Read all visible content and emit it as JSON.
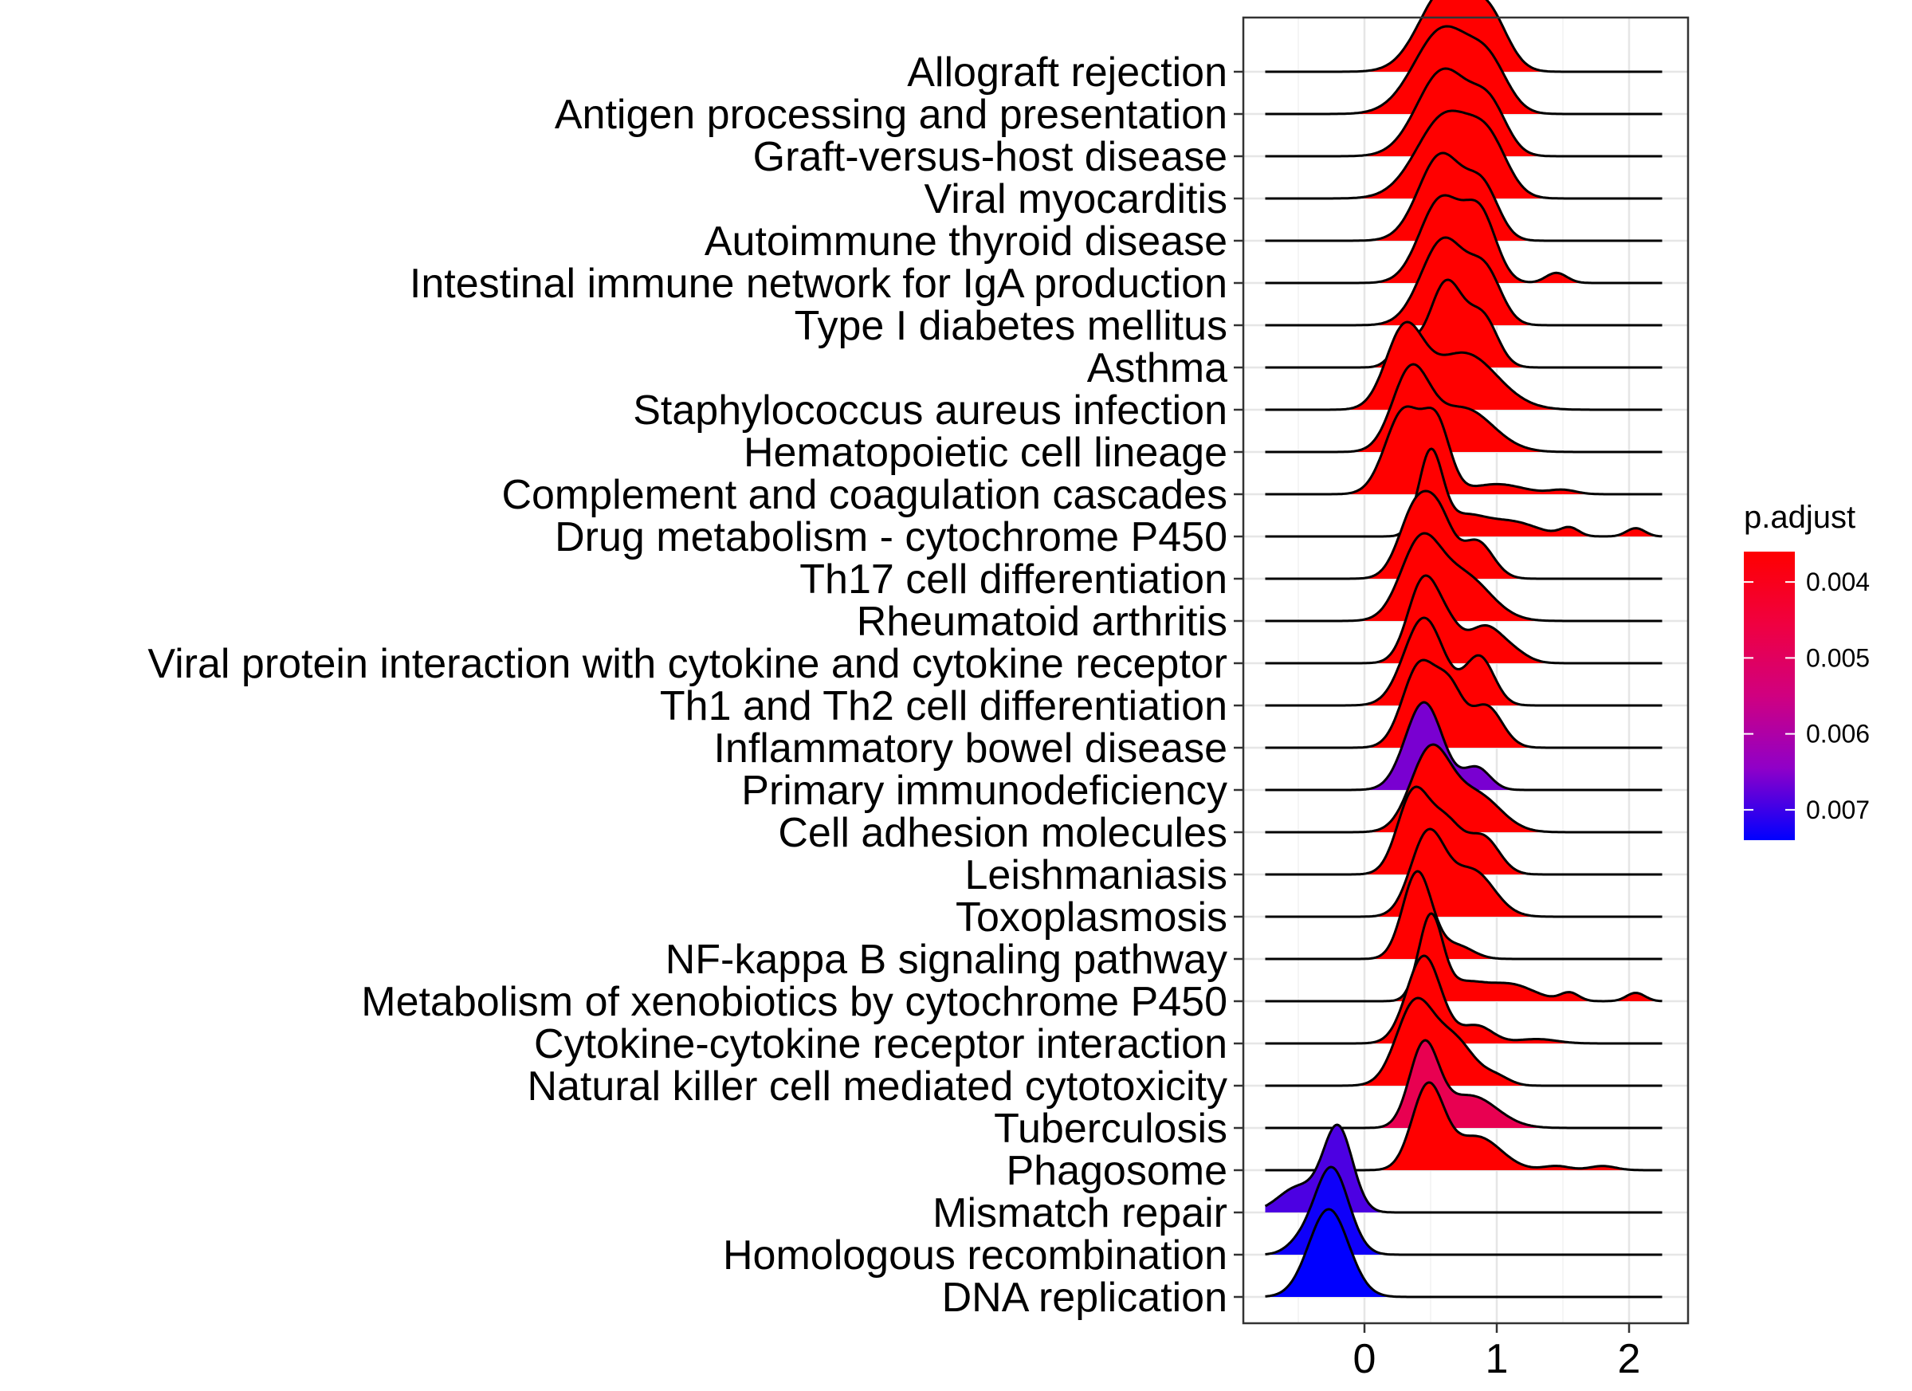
{
  "chart_data": {
    "type": "ridgeline",
    "x_ticks": [
      0,
      1,
      2
    ],
    "xlim": [
      -0.9,
      2.4
    ],
    "grid": true,
    "legend": {
      "title": "p.adjust",
      "position": "right",
      "ticks": [
        "0.004",
        "0.005",
        "0.006",
        "0.007"
      ],
      "range": [
        0.0036,
        0.0074
      ],
      "color_low_padj": "#FF0000",
      "color_high_padj": "#0000FF"
    },
    "categories": [
      {
        "name": "Allograft rejection",
        "p_adjust": 0.0036,
        "x_range": [
          -0.75,
          2.25
        ],
        "peaks": [
          [
            0.62,
            1.0,
            0.2
          ],
          [
            0.95,
            0.55,
            0.14
          ]
        ]
      },
      {
        "name": "Antigen processing and presentation",
        "p_adjust": 0.0036,
        "x_range": [
          -0.75,
          2.25
        ],
        "peaks": [
          [
            0.6,
            1.0,
            0.22
          ],
          [
            0.95,
            0.45,
            0.14
          ]
        ]
      },
      {
        "name": "Graft-versus-host disease",
        "p_adjust": 0.0036,
        "x_range": [
          -0.75,
          2.25
        ],
        "peaks": [
          [
            0.6,
            1.0,
            0.2
          ],
          [
            0.95,
            0.5,
            0.13
          ]
        ]
      },
      {
        "name": "Viral myocarditis",
        "p_adjust": 0.0036,
        "x_range": [
          -0.75,
          2.25
        ],
        "peaks": [
          [
            0.62,
            1.0,
            0.22
          ],
          [
            0.95,
            0.5,
            0.14
          ]
        ]
      },
      {
        "name": "Autoimmune thyroid disease",
        "p_adjust": 0.0036,
        "x_range": [
          -0.75,
          2.25
        ],
        "peaks": [
          [
            0.58,
            1.0,
            0.17
          ],
          [
            0.9,
            0.55,
            0.12
          ]
        ]
      },
      {
        "name": "Intestinal immune network for IgA production",
        "p_adjust": 0.0036,
        "x_range": [
          -0.75,
          2.25
        ],
        "peaks": [
          [
            0.58,
            1.0,
            0.16
          ],
          [
            0.88,
            0.75,
            0.12
          ],
          [
            1.45,
            0.12,
            0.08
          ]
        ]
      },
      {
        "name": "Type I diabetes mellitus",
        "p_adjust": 0.0036,
        "x_range": [
          -0.75,
          2.25
        ],
        "peaks": [
          [
            0.6,
            1.0,
            0.17
          ],
          [
            0.92,
            0.55,
            0.12
          ]
        ]
      },
      {
        "name": "Asthma",
        "p_adjust": 0.0036,
        "x_range": [
          -0.75,
          2.25
        ],
        "peaks": [
          [
            0.3,
            0.3,
            0.09
          ],
          [
            0.62,
            1.0,
            0.13
          ],
          [
            0.9,
            0.55,
            0.11
          ]
        ]
      },
      {
        "name": "Staphylococcus aureus infection",
        "p_adjust": 0.0036,
        "x_range": [
          -0.75,
          2.25
        ],
        "peaks": [
          [
            0.3,
            1.0,
            0.14
          ],
          [
            0.75,
            0.75,
            0.25
          ]
        ]
      },
      {
        "name": "Hematopoietic cell lineage",
        "p_adjust": 0.0036,
        "x_range": [
          -0.75,
          2.25
        ],
        "peaks": [
          [
            0.35,
            1.0,
            0.14
          ],
          [
            0.75,
            0.55,
            0.22
          ]
        ]
      },
      {
        "name": "Complement and coagulation cascades",
        "p_adjust": 0.0036,
        "x_range": [
          -0.75,
          2.25
        ],
        "peaks": [
          [
            0.3,
            1.0,
            0.14
          ],
          [
            0.55,
            0.75,
            0.1
          ],
          [
            1.0,
            0.12,
            0.2
          ],
          [
            1.5,
            0.05,
            0.1
          ]
        ]
      },
      {
        "name": "Drug metabolism - cytochrome P450",
        "p_adjust": 0.0036,
        "x_range": [
          -0.75,
          2.25
        ],
        "peaks": [
          [
            0.5,
            1.0,
            0.09
          ],
          [
            0.75,
            0.22,
            0.15
          ],
          [
            1.1,
            0.18,
            0.2
          ],
          [
            1.55,
            0.1,
            0.07
          ],
          [
            2.05,
            0.1,
            0.07
          ]
        ]
      },
      {
        "name": "Th17 cell differentiation",
        "p_adjust": 0.0036,
        "x_range": [
          -0.75,
          2.25
        ],
        "peaks": [
          [
            0.4,
            1.0,
            0.13
          ],
          [
            0.85,
            0.5,
            0.12
          ],
          [
            0.58,
            0.55,
            0.1
          ]
        ]
      },
      {
        "name": "Rheumatoid arthritis",
        "p_adjust": 0.0036,
        "x_range": [
          -0.75,
          2.25
        ],
        "peaks": [
          [
            0.42,
            1.0,
            0.15
          ],
          [
            0.75,
            0.6,
            0.2
          ]
        ]
      },
      {
        "name": "Viral protein interaction with cytokine and cytokine receptor",
        "p_adjust": 0.0036,
        "x_range": [
          -0.75,
          2.25
        ],
        "peaks": [
          [
            0.45,
            1.0,
            0.12
          ],
          [
            0.9,
            0.4,
            0.12
          ],
          [
            0.65,
            0.3,
            0.1
          ],
          [
            1.1,
            0.15,
            0.12
          ]
        ]
      },
      {
        "name": "Th1 and Th2 cell differentiation",
        "p_adjust": 0.0036,
        "x_range": [
          -0.75,
          2.25
        ],
        "peaks": [
          [
            0.45,
            1.0,
            0.15
          ],
          [
            0.87,
            0.55,
            0.11
          ]
        ]
      },
      {
        "name": "Inflammatory bowel disease",
        "p_adjust": 0.0036,
        "x_range": [
          -0.75,
          2.25
        ],
        "peaks": [
          [
            0.42,
            1.0,
            0.13
          ],
          [
            0.65,
            0.6,
            0.1
          ],
          [
            0.92,
            0.5,
            0.12
          ]
        ]
      },
      {
        "name": "Primary immunodeficiency",
        "p_adjust": 0.0066,
        "x_range": [
          -0.75,
          2.25
        ],
        "peaks": [
          [
            0.45,
            1.0,
            0.14
          ],
          [
            0.85,
            0.25,
            0.1
          ]
        ]
      },
      {
        "name": "Cell adhesion molecules",
        "p_adjust": 0.0036,
        "x_range": [
          -0.75,
          2.25
        ],
        "peaks": [
          [
            0.5,
            1.0,
            0.15
          ],
          [
            0.85,
            0.45,
            0.18
          ]
        ]
      },
      {
        "name": "Leishmaniasis",
        "p_adjust": 0.0036,
        "x_range": [
          -0.75,
          2.25
        ],
        "peaks": [
          [
            0.37,
            1.0,
            0.12
          ],
          [
            0.62,
            0.6,
            0.12
          ],
          [
            0.9,
            0.45,
            0.12
          ]
        ]
      },
      {
        "name": "Toxoplasmosis",
        "p_adjust": 0.0036,
        "x_range": [
          -0.75,
          2.25
        ],
        "peaks": [
          [
            0.48,
            1.0,
            0.13
          ],
          [
            0.82,
            0.55,
            0.16
          ]
        ]
      },
      {
        "name": "NF-kappa B signaling pathway",
        "p_adjust": 0.0036,
        "x_range": [
          -0.75,
          2.25
        ],
        "peaks": [
          [
            0.4,
            1.0,
            0.11
          ],
          [
            0.7,
            0.15,
            0.12
          ]
        ]
      },
      {
        "name": "Metabolism of xenobiotics by cytochrome P450",
        "p_adjust": 0.0036,
        "x_range": [
          -0.75,
          2.25
        ],
        "peaks": [
          [
            0.5,
            1.0,
            0.09
          ],
          [
            0.75,
            0.2,
            0.15
          ],
          [
            1.1,
            0.2,
            0.18
          ],
          [
            1.55,
            0.1,
            0.07
          ],
          [
            2.05,
            0.1,
            0.07
          ]
        ]
      },
      {
        "name": "Cytokine-cytokine receptor interaction",
        "p_adjust": 0.0036,
        "x_range": [
          -0.75,
          2.25
        ],
        "peaks": [
          [
            0.45,
            1.0,
            0.13
          ],
          [
            0.85,
            0.2,
            0.12
          ],
          [
            1.3,
            0.05,
            0.15
          ]
        ]
      },
      {
        "name": "Natural killer cell mediated cytotoxicity",
        "p_adjust": 0.0036,
        "x_range": [
          -0.75,
          2.25
        ],
        "peaks": [
          [
            0.38,
            1.0,
            0.14
          ],
          [
            0.68,
            0.55,
            0.15
          ],
          [
            1.0,
            0.1,
            0.1
          ]
        ]
      },
      {
        "name": "Tuberculosis",
        "p_adjust": 0.0048,
        "x_range": [
          -0.75,
          2.25
        ],
        "peaks": [
          [
            0.45,
            1.0,
            0.11
          ],
          [
            0.8,
            0.4,
            0.2
          ]
        ]
      },
      {
        "name": "Phagosome",
        "p_adjust": 0.0036,
        "x_range": [
          -0.75,
          2.25
        ],
        "peaks": [
          [
            0.48,
            1.0,
            0.12
          ],
          [
            0.85,
            0.4,
            0.18
          ],
          [
            1.45,
            0.05,
            0.1
          ],
          [
            1.8,
            0.05,
            0.1
          ]
        ]
      },
      {
        "name": "Mismatch repair",
        "p_adjust": 0.0069,
        "x_range": [
          -0.75,
          2.25
        ],
        "peaks": [
          [
            -0.2,
            1.0,
            0.11
          ],
          [
            -0.5,
            0.3,
            0.15
          ]
        ]
      },
      {
        "name": "Homologous recombination",
        "p_adjust": 0.0073,
        "x_range": [
          -0.75,
          2.25
        ],
        "peaks": [
          [
            -0.25,
            1.0,
            0.13
          ],
          [
            -0.5,
            0.1,
            0.1
          ]
        ]
      },
      {
        "name": "DNA replication",
        "p_adjust": 0.0074,
        "x_range": [
          -0.75,
          2.25
        ],
        "peaks": [
          [
            -0.27,
            1.0,
            0.15
          ]
        ]
      }
    ]
  }
}
